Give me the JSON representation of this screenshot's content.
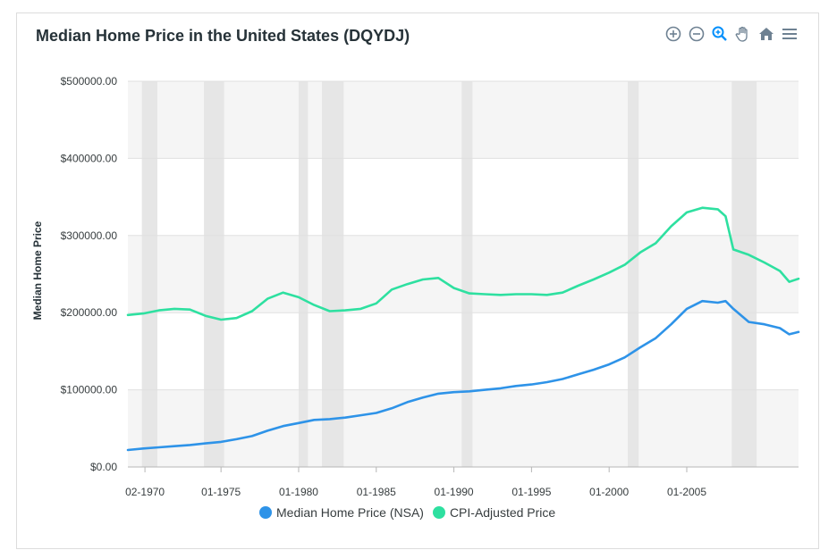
{
  "header": {
    "title": "Median Home Price in the United States (DQYDJ)"
  },
  "toolbar": {
    "icons": [
      "zoom-in-icon",
      "zoom-out-icon",
      "zoom-select-icon",
      "pan-hand-icon",
      "home-reset-icon",
      "menu-icon"
    ]
  },
  "colors": {
    "nsa": "#2E93E8",
    "cpi": "#2EE0A0",
    "recession": "#e6e6e6",
    "band": "#f5f5f5"
  },
  "chart_data": {
    "type": "line",
    "title": "Median Home Price in the United States (DQYDJ)",
    "ylabel": "Median Home Price",
    "xlabel": "",
    "ylim": [
      0,
      500000
    ],
    "xlim": [
      1969.0,
      2012.2
    ],
    "ytick_labels": [
      "$0.00",
      "$100000.00",
      "$200000.00",
      "$300000.00",
      "$400000.00",
      "$500000.00"
    ],
    "yticks": [
      0,
      100000,
      200000,
      300000,
      400000,
      500000
    ],
    "xtick_labels": [
      "02-1970",
      "01-1975",
      "01-1980",
      "01-1985",
      "01-1990",
      "01-1995",
      "01-2000",
      "01-2005"
    ],
    "xticks": [
      1970.1,
      1975.0,
      1980.0,
      1985.0,
      1990.0,
      1995.0,
      2000.0,
      2005.0
    ],
    "grid": true,
    "legend": "bottom-center",
    "recessions": [
      [
        1969.9,
        1970.9
      ],
      [
        1973.9,
        1975.2
      ],
      [
        1980.0,
        1980.6
      ],
      [
        1981.5,
        1982.9
      ],
      [
        1990.5,
        1991.2
      ],
      [
        2001.2,
        2001.9
      ],
      [
        2007.9,
        2009.5
      ]
    ],
    "series": [
      {
        "name": "Median Home Price (NSA)",
        "x": [
          1969.0,
          1970.0,
          1971.0,
          1972.0,
          1973.0,
          1974.0,
          1975.0,
          1976.0,
          1977.0,
          1978.0,
          1979.0,
          1980.0,
          1981.0,
          1982.0,
          1983.0,
          1984.0,
          1985.0,
          1986.0,
          1987.0,
          1988.0,
          1989.0,
          1990.0,
          1991.0,
          1992.0,
          1993.0,
          1994.0,
          1995.0,
          1996.0,
          1997.0,
          1998.0,
          1999.0,
          2000.0,
          2001.0,
          2002.0,
          2003.0,
          2004.0,
          2005.0,
          2006.0,
          2007.0,
          2007.5,
          2008.0,
          2009.0,
          2010.0,
          2011.0,
          2011.6,
          2012.2
        ],
        "values": [
          22000,
          24000,
          25500,
          27000,
          28500,
          30500,
          32500,
          36000,
          40000,
          47000,
          53000,
          57000,
          61000,
          62000,
          64000,
          67000,
          70000,
          76000,
          84000,
          90000,
          95000,
          97000,
          98000,
          100000,
          102000,
          105000,
          107000,
          110000,
          114000,
          120000,
          126000,
          133000,
          142000,
          155000,
          167000,
          185000,
          205000,
          215000,
          213000,
          215000,
          205000,
          188000,
          185000,
          180000,
          172000,
          175000
        ]
      },
      {
        "name": "CPI-Adjusted Price",
        "x": [
          1969.0,
          1970.0,
          1971.0,
          1972.0,
          1973.0,
          1974.0,
          1975.0,
          1976.0,
          1977.0,
          1978.0,
          1979.0,
          1980.0,
          1981.0,
          1982.0,
          1983.0,
          1984.0,
          1985.0,
          1986.0,
          1987.0,
          1988.0,
          1989.0,
          1990.0,
          1991.0,
          1992.0,
          1993.0,
          1994.0,
          1995.0,
          1996.0,
          1997.0,
          1998.0,
          1999.0,
          2000.0,
          2001.0,
          2002.0,
          2003.0,
          2004.0,
          2005.0,
          2006.0,
          2007.0,
          2007.5,
          2008.0,
          2009.0,
          2010.0,
          2011.0,
          2011.6,
          2012.2
        ],
        "values": [
          197000,
          199000,
          203000,
          205000,
          204000,
          196000,
          191000,
          193000,
          202000,
          218000,
          226000,
          220000,
          210000,
          202000,
          203000,
          205000,
          212000,
          230000,
          237000,
          243000,
          245000,
          232000,
          225000,
          224000,
          223000,
          224000,
          224000,
          223000,
          226000,
          235000,
          243000,
          252000,
          262000,
          278000,
          290000,
          312000,
          330000,
          336000,
          334000,
          325000,
          282000,
          275000,
          265000,
          254000,
          240000,
          244000
        ]
      }
    ]
  }
}
